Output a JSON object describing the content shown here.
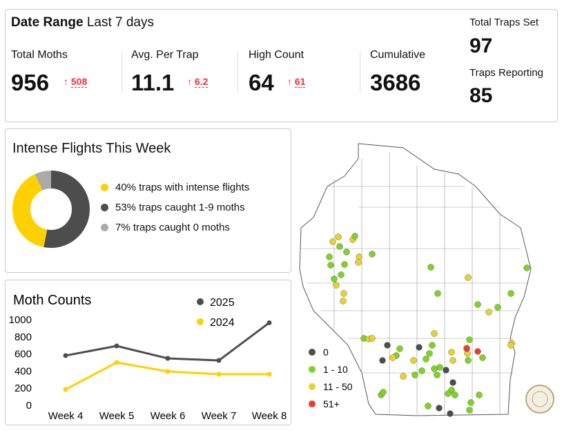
{
  "header": {
    "date_range_label": "Date Range",
    "date_range_value": "Last 7 days"
  },
  "kpis": [
    {
      "label": "Total Moths",
      "value": "956",
      "delta": "508"
    },
    {
      "label": "Avg. Per Trap",
      "value": "11.1",
      "delta": "6.2"
    },
    {
      "label": "High Count",
      "value": "64",
      "delta": "61"
    },
    {
      "label": "Cumulative",
      "value": "3686"
    }
  ],
  "traps": {
    "set_label": "Total Traps Set",
    "set_value": "97",
    "reporting_label": "Traps Reporting",
    "reporting_value": "85"
  },
  "flights": {
    "title": "Intense Flights This Week",
    "items": [
      {
        "label": "40% traps with intense flights",
        "pct": 40,
        "color": "#ffd000"
      },
      {
        "label": "53% traps caught 1-9 moths",
        "pct": 53,
        "color": "#4d4d4d"
      },
      {
        "label": "7% traps caught 0 moths",
        "pct": 7,
        "color": "#aaaaaa"
      }
    ]
  },
  "chart_data": {
    "type": "line",
    "title": "Moth Counts",
    "categories": [
      "Week 4",
      "Week 5",
      "Week 6",
      "Week 7",
      "Week 8"
    ],
    "ylim": [
      0,
      1000
    ],
    "yticks": [
      "0",
      "200",
      "400",
      "600",
      "800",
      "1000"
    ],
    "series": [
      {
        "name": "2025",
        "color": "#4d4d4d",
        "values": [
          573,
          685,
          540,
          516,
          956
        ]
      },
      {
        "name": "2024",
        "color": "#ffd000",
        "values": [
          177,
          492,
          387,
          355,
          355
        ]
      }
    ],
    "legend": "top-right"
  },
  "map": {
    "legend": [
      {
        "label": "0",
        "color": "#4d4d4d"
      },
      {
        "label": "1 - 10",
        "color": "#7fd321"
      },
      {
        "label": "11 - 50",
        "color": "#e8d32a"
      },
      {
        "label": "51+",
        "color": "#f03a2e"
      }
    ]
  }
}
